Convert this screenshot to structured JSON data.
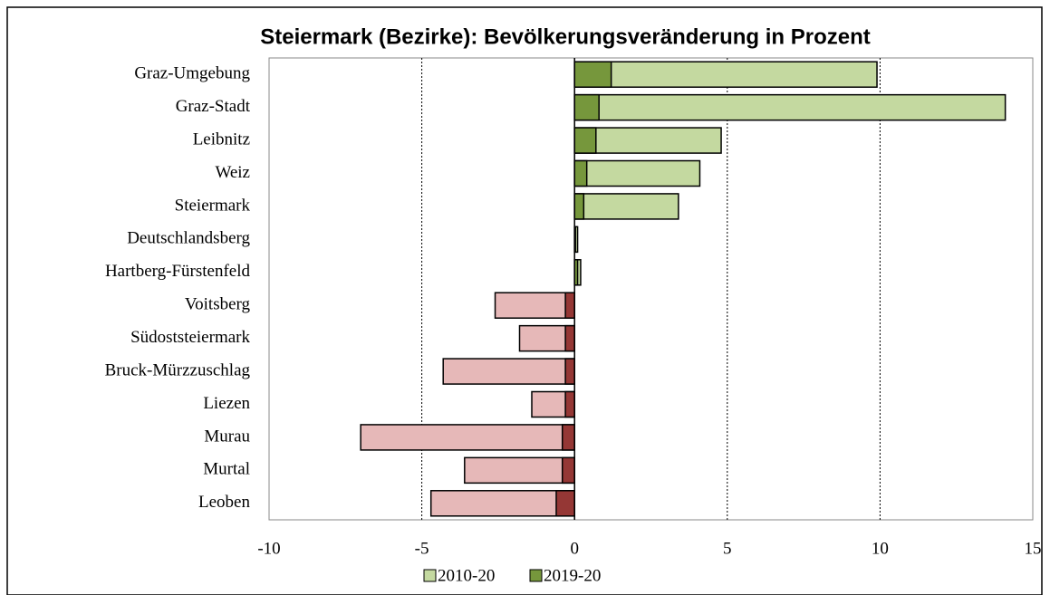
{
  "chart_data": {
    "type": "overlap_barh",
    "title": "Steiermark (Bezirke): Bevölkerungsveränderung in Prozent",
    "categories": [
      "Graz-Umgebung",
      "Graz-Stadt",
      "Leibnitz",
      "Weiz",
      "Steiermark",
      "Deutschlandsberg",
      "Hartberg-Fürstenfeld",
      "Voitsberg",
      "Südoststeiermark",
      "Bruck-Mürzzuschlag",
      "Liezen",
      "Murau",
      "Murtal",
      "Leoben"
    ],
    "series": [
      {
        "name": "2010-20",
        "color": "#c4d9a0",
        "negative_color": "#e6b8b8",
        "values": [
          9.9,
          14.1,
          4.8,
          4.1,
          3.4,
          0.1,
          0.2,
          -2.6,
          -1.8,
          -4.3,
          -1.4,
          -7.0,
          -3.6,
          -4.7
        ]
      },
      {
        "name": "2019-20",
        "color": "#76973c",
        "negative_color": "#953735",
        "values": [
          1.2,
          0.8,
          0.7,
          0.4,
          0.3,
          0.0,
          0.1,
          -0.3,
          -0.3,
          -0.3,
          -0.3,
          -0.4,
          -0.4,
          -0.6
        ]
      }
    ],
    "xlim": [
      -10,
      15
    ],
    "xticks": [
      -10,
      -5,
      0,
      5,
      10,
      15
    ],
    "grid": true,
    "legend": "bottom"
  }
}
